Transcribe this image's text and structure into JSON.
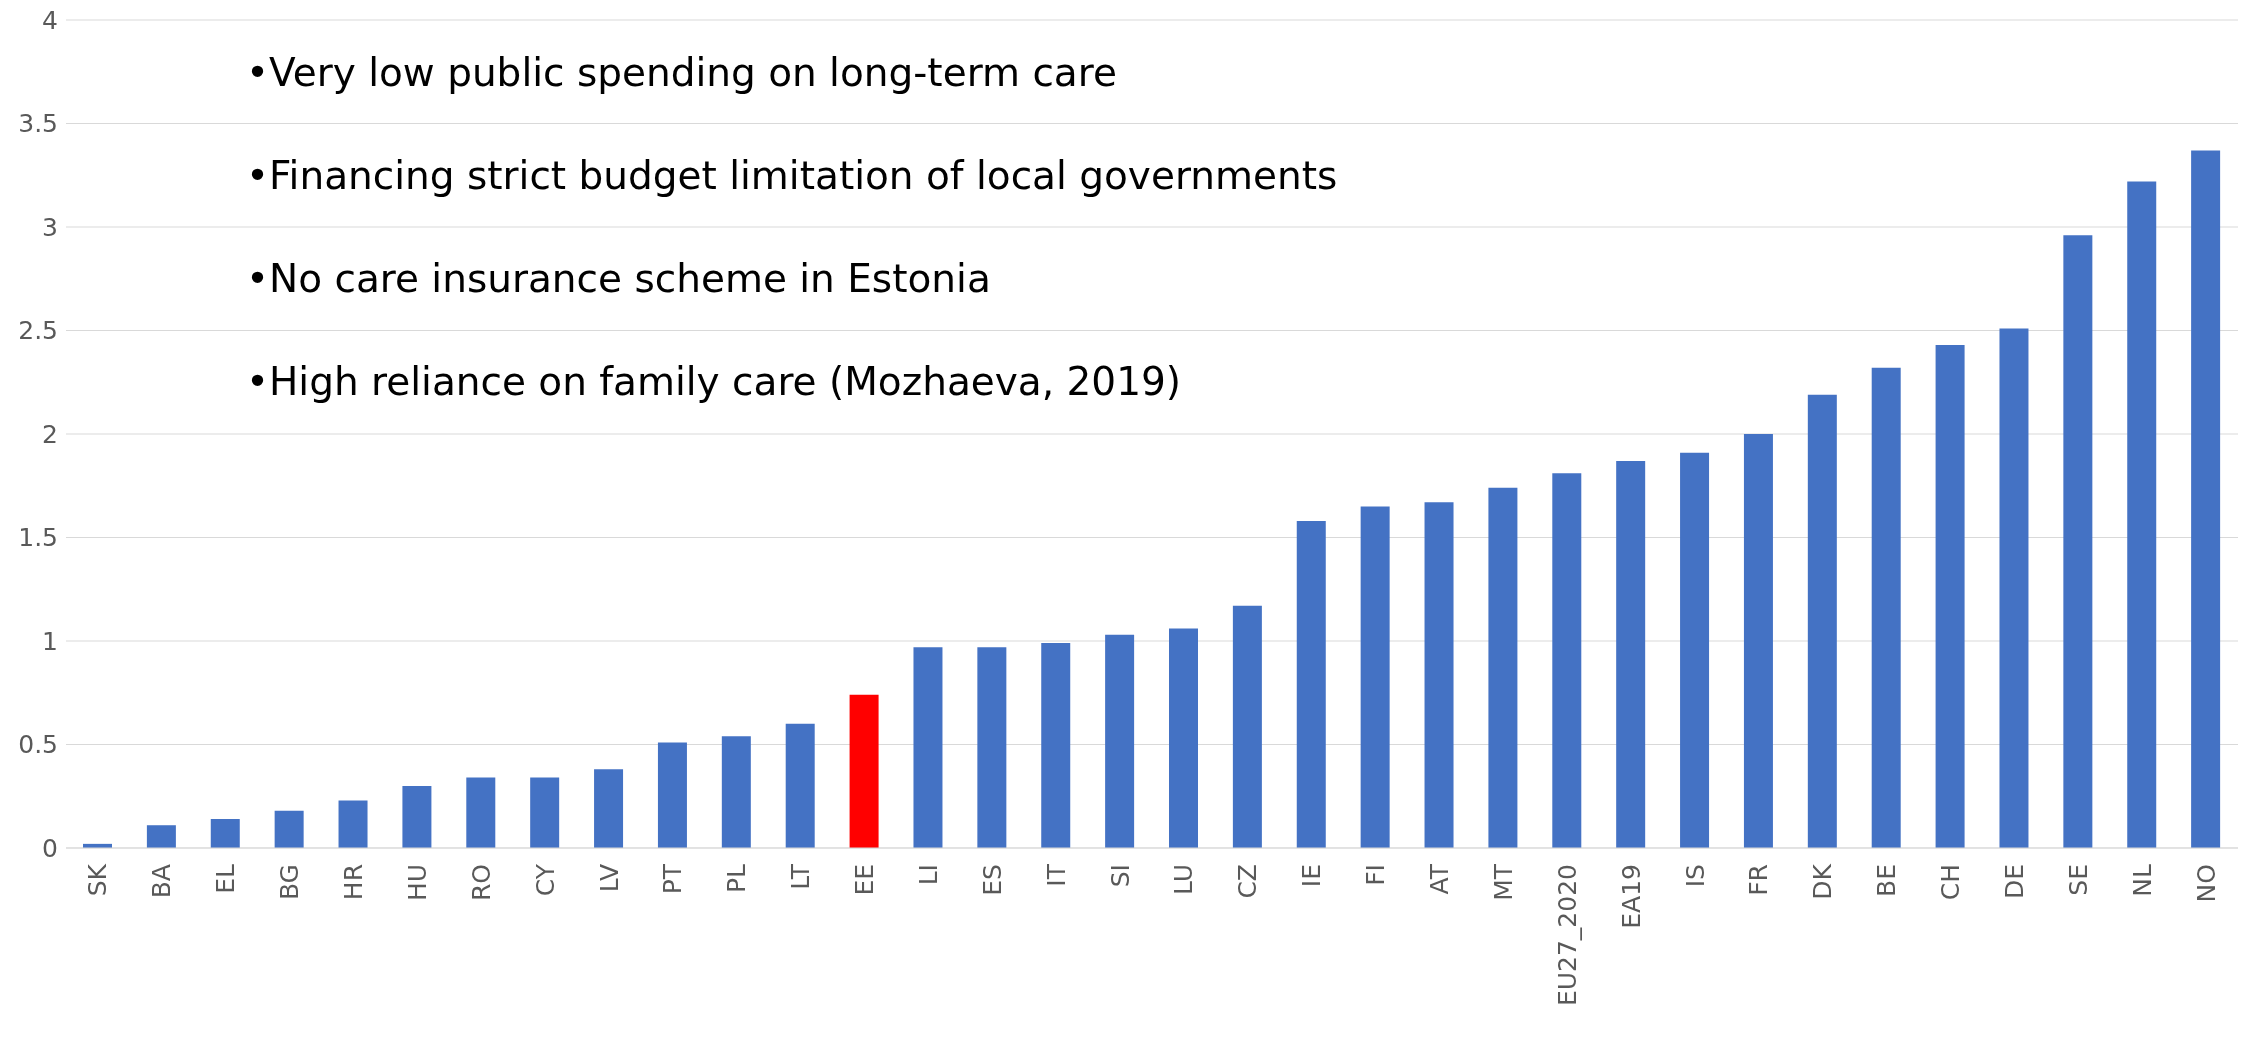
{
  "chart_data": {
    "type": "bar",
    "categories": [
      "SK",
      "BA",
      "EL",
      "BG",
      "HR",
      "HU",
      "RO",
      "CY",
      "LV",
      "PT",
      "PL",
      "LT",
      "EE",
      "LI",
      "ES",
      "IT",
      "SI",
      "LU",
      "CZ",
      "IE",
      "FI",
      "AT",
      "MT",
      "EU27_2020",
      "EA19",
      "IS",
      "FR",
      "DK",
      "BE",
      "CH",
      "DE",
      "SE",
      "NL",
      "NO"
    ],
    "values": [
      0.02,
      0.11,
      0.14,
      0.18,
      0.23,
      0.3,
      0.34,
      0.34,
      0.38,
      0.51,
      0.54,
      0.6,
      0.74,
      0.97,
      0.97,
      0.99,
      1.03,
      1.06,
      1.17,
      1.58,
      1.65,
      1.67,
      1.74,
      1.81,
      1.87,
      1.91,
      2.0,
      2.19,
      2.32,
      2.43,
      2.51,
      2.96,
      3.22,
      3.37
    ],
    "colors": [
      "#4472c4",
      "#4472c4",
      "#4472c4",
      "#4472c4",
      "#4472c4",
      "#4472c4",
      "#4472c4",
      "#4472c4",
      "#4472c4",
      "#4472c4",
      "#4472c4",
      "#4472c4",
      "#ff0000",
      "#4472c4",
      "#4472c4",
      "#4472c4",
      "#4472c4",
      "#4472c4",
      "#4472c4",
      "#4472c4",
      "#4472c4",
      "#4472c4",
      "#4472c4",
      "#4472c4",
      "#4472c4",
      "#4472c4",
      "#4472c4",
      "#4472c4",
      "#4472c4",
      "#4472c4",
      "#4472c4",
      "#4472c4",
      "#4472c4",
      "#4472c4"
    ],
    "ylim": [
      0,
      4
    ],
    "yticks": [
      0,
      0.5,
      1,
      1.5,
      2,
      2.5,
      3,
      3.5,
      4
    ],
    "grid": "y",
    "legend": false,
    "annotations": [
      "•Very low public spending on long-term care",
      "•Financing strict budget limitation of local governments",
      "•No care insurance scheme in Estonia",
      "•High reliance on family care (Mozhaeva, 2019)"
    ]
  }
}
